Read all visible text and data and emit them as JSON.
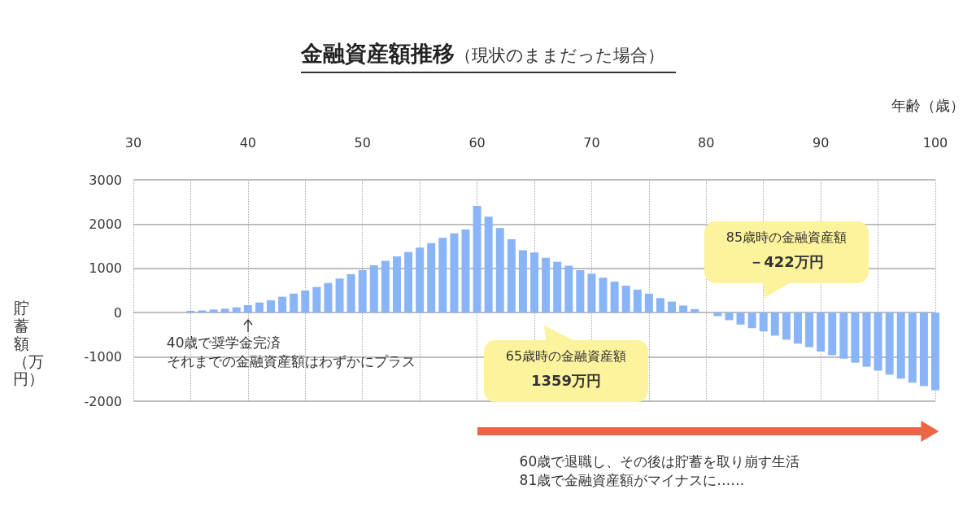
{
  "chart_data": {
    "type": "bar",
    "title": "金融資産額推移",
    "subtitle": "（現状のままだった場合）",
    "xlabel": "年齢（歳）",
    "ylabel": "貯蓄額（万円）",
    "x": [
      35,
      36,
      37,
      38,
      39,
      40,
      41,
      42,
      43,
      44,
      45,
      46,
      47,
      48,
      49,
      50,
      51,
      52,
      53,
      54,
      55,
      56,
      57,
      58,
      59,
      60,
      61,
      62,
      63,
      64,
      65,
      66,
      67,
      68,
      69,
      70,
      71,
      72,
      73,
      74,
      75,
      76,
      77,
      78,
      79,
      80,
      81,
      82,
      83,
      84,
      85,
      86,
      87,
      88,
      89,
      90,
      91,
      92,
      93,
      94,
      95,
      96,
      97,
      98,
      99,
      100
    ],
    "values": [
      40,
      50,
      70,
      90,
      120,
      170,
      230,
      280,
      360,
      430,
      500,
      580,
      670,
      770,
      870,
      960,
      1070,
      1170,
      1270,
      1370,
      1470,
      1570,
      1690,
      1790,
      1880,
      2410,
      2170,
      1910,
      1660,
      1410,
      1359,
      1240,
      1150,
      1060,
      960,
      880,
      790,
      700,
      610,
      520,
      430,
      330,
      250,
      160,
      80,
      null,
      -80,
      -170,
      -270,
      -350,
      -422,
      -520,
      -610,
      -700,
      -780,
      -880,
      -960,
      -1040,
      -1130,
      -1220,
      -1310,
      -1400,
      -1490,
      -1580,
      -1660,
      -1750
    ],
    "color": "#8ab4f8",
    "xlim": [
      30,
      100
    ],
    "xticks": [
      30,
      {
        "value": 35,
        "label": null
      },
      40,
      {
        "value": 45,
        "label": null
      },
      50,
      {
        "value": 55,
        "label": null
      },
      60,
      {
        "value": 65,
        "label": null
      },
      70,
      {
        "value": 75,
        "label": null
      },
      80,
      {
        "value": 85,
        "label": null
      },
      90,
      {
        "value": 95,
        "label": null
      },
      100
    ],
    "ylim": [
      -2000,
      3000
    ],
    "yticks": [
      -2000,
      -1000,
      0,
      1000,
      2000,
      3000
    ],
    "grid": true,
    "annotations": [
      {
        "text": "40歳で奨学金完済",
        "x": 40,
        "y": 0
      },
      "それまでの金融資産額はわずかにプラス",
      "65歳時の金融資産額",
      "1359万円",
      "85歳時の金融資産額",
      "－422万円",
      "60歳で退職し、その後は貯蓄を取り崩す生活",
      "81歳で金融資産額がマイナスに……"
    ]
  }
}
